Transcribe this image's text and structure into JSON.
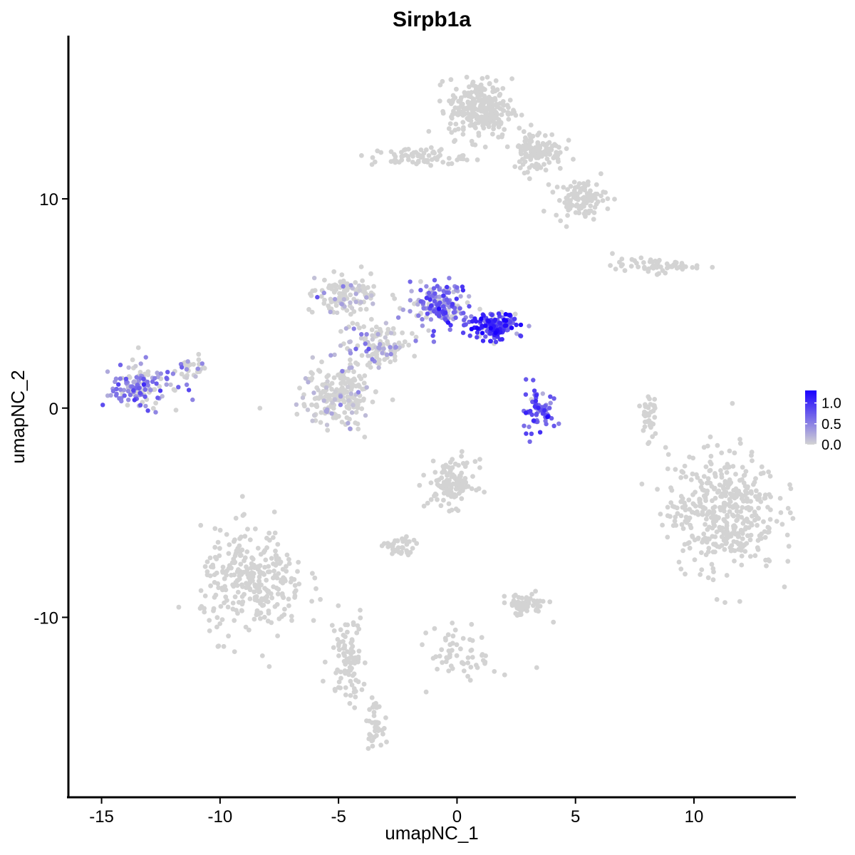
{
  "chart_data": {
    "type": "scatter",
    "title": "Sirpb1a",
    "xlabel": "umapNC_1",
    "ylabel": "umapNC_2",
    "xlim": [
      -16.4,
      14.3
    ],
    "ylim": [
      -18.6,
      17.8
    ],
    "xticks": [
      -15,
      -10,
      -5,
      0,
      5,
      10
    ],
    "xtick_labels": [
      "-15",
      "-10",
      "-5",
      "0",
      "5",
      "10"
    ],
    "yticks": [
      -10,
      0,
      10
    ],
    "ytick_labels": [
      "-10",
      "0",
      "10"
    ],
    "grid": false,
    "color_scale": {
      "low_color": "#d3d3d3",
      "high_color": "#1a00ff",
      "min": 0.0,
      "max": 1.3,
      "ticks": [
        0.0,
        0.5,
        1.0
      ],
      "tick_labels": [
        "0.0",
        "0.5",
        "1.0"
      ],
      "legend_position": "right"
    },
    "clusters": [
      {
        "center": [
          -13.3,
          1.0
        ],
        "spread": [
          1.3,
          0.9
        ],
        "n": 140,
        "expression_mean": 0.45
      },
      {
        "center": [
          -11.2,
          1.8
        ],
        "spread": [
          0.6,
          0.6
        ],
        "n": 30,
        "expression_mean": 0.1
      },
      {
        "center": [
          -4.8,
          5.4
        ],
        "spread": [
          1.2,
          0.8
        ],
        "n": 120,
        "expression_mean": 0.02
      },
      {
        "center": [
          -5.0,
          0.6
        ],
        "spread": [
          1.5,
          1.3
        ],
        "n": 200,
        "expression_mean": 0.02
      },
      {
        "center": [
          -3.3,
          3.0
        ],
        "spread": [
          1.2,
          1.0
        ],
        "n": 120,
        "expression_mean": 0.2
      },
      {
        "center": [
          -0.7,
          4.9
        ],
        "spread": [
          1.1,
          1.0
        ],
        "n": 170,
        "expression_mean": 0.55
      },
      {
        "center": [
          1.6,
          3.9
        ],
        "spread": [
          1.0,
          0.6
        ],
        "n": 140,
        "expression_mean": 0.9
      },
      {
        "center": [
          3.4,
          -0.2
        ],
        "spread": [
          0.6,
          1.0
        ],
        "n": 70,
        "expression_mean": 0.65
      },
      {
        "center": [
          1.0,
          14.3
        ],
        "spread": [
          1.2,
          1.3
        ],
        "n": 260,
        "expression_mean": 0.0
      },
      {
        "center": [
          3.4,
          12.3
        ],
        "spread": [
          1.0,
          0.9
        ],
        "n": 120,
        "expression_mean": 0.0
      },
      {
        "center": [
          5.2,
          10.0
        ],
        "spread": [
          1.0,
          0.8
        ],
        "n": 100,
        "expression_mean": 0.0
      },
      {
        "center": [
          -1.6,
          12.0
        ],
        "spread": [
          1.8,
          0.4
        ],
        "n": 70,
        "expression_mean": 0.0
      },
      {
        "center": [
          8.3,
          6.8
        ],
        "spread": [
          1.6,
          0.3
        ],
        "n": 60,
        "expression_mean": 0.0
      },
      {
        "center": [
          11.2,
          -4.9
        ],
        "spread": [
          2.1,
          2.6
        ],
        "n": 440,
        "expression_mean": 0.0
      },
      {
        "center": [
          8.1,
          -0.3
        ],
        "spread": [
          0.3,
          1.3
        ],
        "n": 35,
        "expression_mean": 0.0
      },
      {
        "center": [
          -8.6,
          -8.4
        ],
        "spread": [
          2.0,
          2.3
        ],
        "n": 300,
        "expression_mean": 0.0
      },
      {
        "center": [
          -4.6,
          -11.8
        ],
        "spread": [
          0.7,
          2.0
        ],
        "n": 90,
        "expression_mean": 0.0
      },
      {
        "center": [
          -3.5,
          -15.1
        ],
        "spread": [
          0.3,
          0.9
        ],
        "n": 40,
        "expression_mean": 0.0
      },
      {
        "center": [
          -0.2,
          -3.6
        ],
        "spread": [
          0.9,
          1.0
        ],
        "n": 120,
        "expression_mean": 0.0
      },
      {
        "center": [
          -2.4,
          -6.7
        ],
        "spread": [
          0.6,
          0.5
        ],
        "n": 40,
        "expression_mean": 0.0
      },
      {
        "center": [
          2.8,
          -9.4
        ],
        "spread": [
          0.9,
          0.5
        ],
        "n": 60,
        "expression_mean": 0.0
      },
      {
        "center": [
          0.3,
          -11.8
        ],
        "spread": [
          1.3,
          1.2
        ],
        "n": 60,
        "expression_mean": 0.0
      }
    ]
  }
}
